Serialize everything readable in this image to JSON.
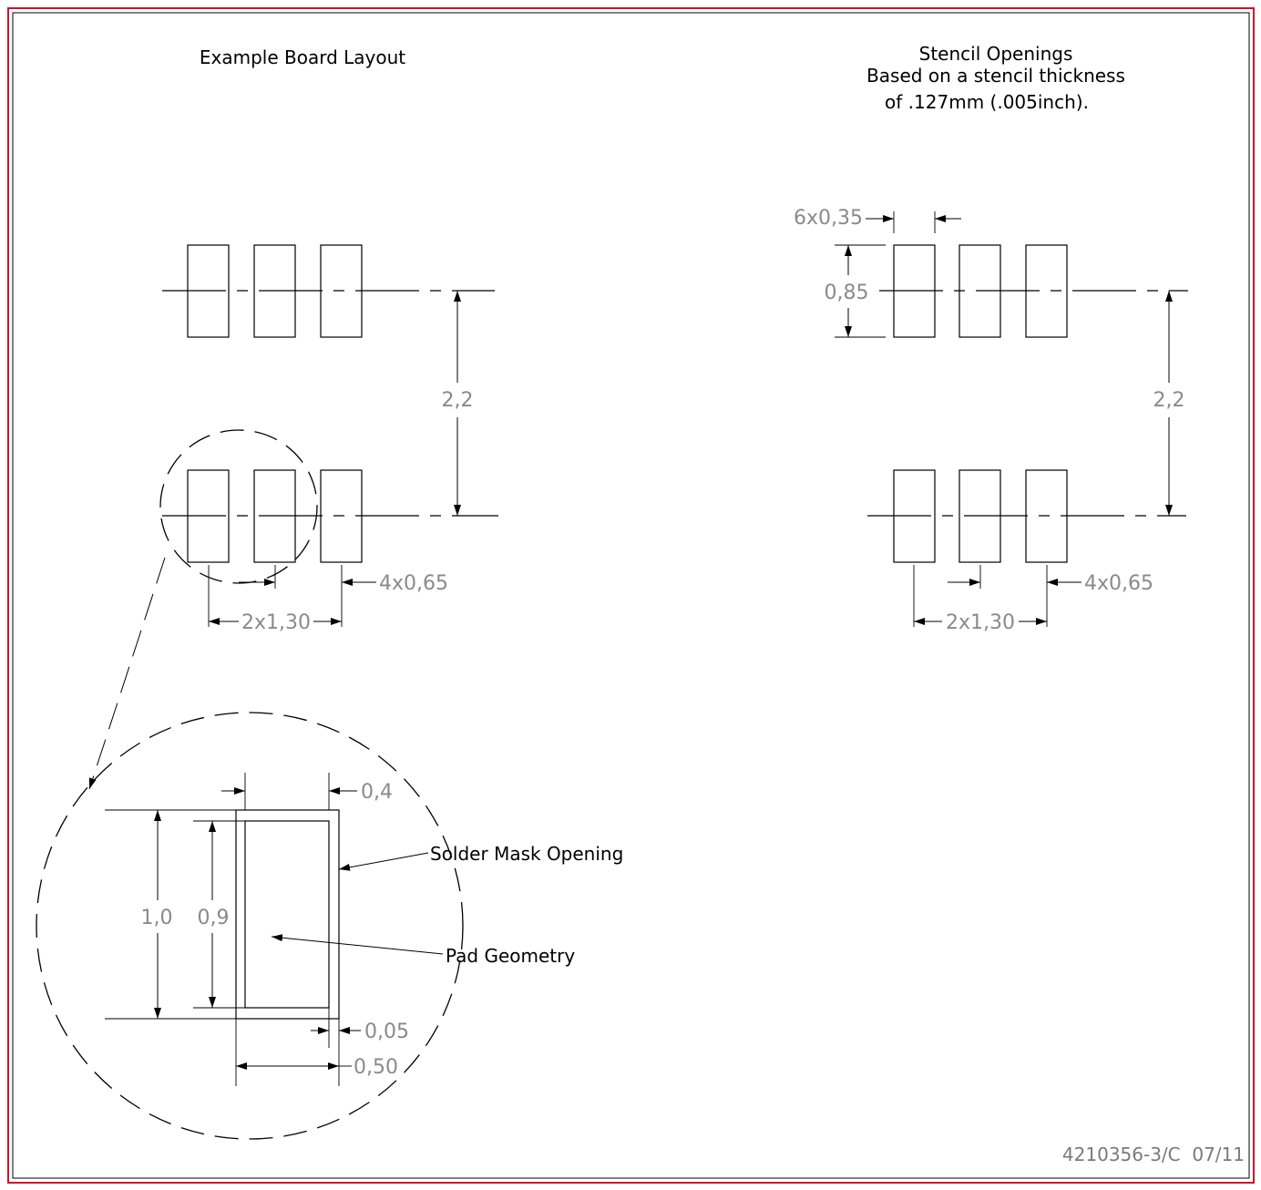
{
  "board_title": "Example Board Layout",
  "stencil_title": {
    "line1": "Stencil Openings",
    "line2": "Based on a stencil thickness",
    "line3": "of .127mm (.005inch)."
  },
  "board_dims": {
    "row_spacing": "2,2",
    "pitch": "4x0,65",
    "span": "2x1,30"
  },
  "stencil_dims": {
    "opening_width": "6x0,35",
    "opening_height": "0,85",
    "row_spacing": "2,2",
    "pitch": "4x0,65",
    "span": "2x1,30"
  },
  "detail": {
    "width_top": "0,4",
    "height_outer": "1,0",
    "height_inner": "0,9",
    "mask_clearance": "0,05",
    "mask_width": "0,50",
    "solder_mask_label": "Solder Mask Opening",
    "pad_geometry_label": "Pad Geometry"
  },
  "drawing_code": "4210356-3/C  07/11",
  "colors": {
    "border": "#d8102a",
    "dimension_text": "#8a8a8a"
  }
}
